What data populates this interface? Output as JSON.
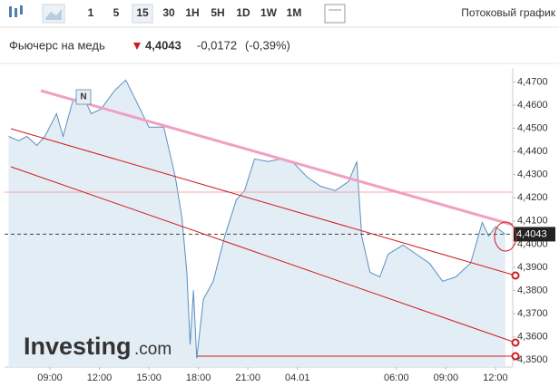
{
  "toolbar": {
    "intervals": [
      "1",
      "5",
      "15",
      "30",
      "1H",
      "5H",
      "1D",
      "1W",
      "1M"
    ],
    "active_interval": "15",
    "streaming": "Потоковый график"
  },
  "chart_data": {
    "type": "area",
    "title": "Фьючерс на медь",
    "last_value": 4.4043,
    "last_label": "4,4043",
    "change": -0.0172,
    "change_label": "-0,0172",
    "change_percent": -0.39,
    "change_percent_label": "(-0,39%)",
    "marker": "N",
    "watermark": "Investing",
    "watermark_suffix": ".com",
    "color": "#5b8fc0",
    "fill": "#e3edf5",
    "x": [
      6.5,
      7.1,
      7.6,
      8.2,
      8.7,
      9.4,
      9.8,
      10.4,
      11,
      11.5,
      12.1,
      12.9,
      13.6,
      14.2,
      15,
      15.9,
      16.6,
      17,
      17.3,
      17.5,
      17.7,
      17.9,
      18.3,
      18.9,
      19.6,
      20.3,
      20.8,
      21.4,
      22.2,
      23,
      23.8,
      24.6,
      25.4,
      26.3,
      27.1,
      27.6,
      27.9,
      28.4,
      29,
      29.5,
      30.4,
      31.2,
      32,
      32.8,
      33.6,
      34.5,
      35.2,
      35.6,
      36,
      36.6
    ],
    "values": [
      4.4465,
      4.4446,
      4.4465,
      4.4426,
      4.4465,
      4.4563,
      4.4465,
      4.4622,
      4.4641,
      4.4563,
      4.4583,
      4.4661,
      4.4708,
      4.4622,
      4.4505,
      4.4505,
      4.429,
      4.4114,
      4.3879,
      4.3567,
      4.3801,
      4.3508,
      4.3762,
      4.384,
      4.4035,
      4.4192,
      4.4231,
      4.4368,
      4.4356,
      4.4368,
      4.4348,
      4.4289,
      4.425,
      4.4231,
      4.427,
      4.4356,
      4.4035,
      4.3879,
      4.3859,
      4.3957,
      4.3996,
      4.3957,
      4.3918,
      4.384,
      4.3859,
      4.3918,
      4.4094,
      4.4035,
      4.4075,
      4.4043
    ],
    "xlim": [
      6.25,
      37.05
    ],
    "xticks": [
      {
        "value": 9,
        "label": "09:00"
      },
      {
        "value": 12,
        "label": "12:00"
      },
      {
        "value": 15,
        "label": "15:00"
      },
      {
        "value": 18,
        "label": "18:00"
      },
      {
        "value": 21,
        "label": "21:00"
      },
      {
        "value": 24,
        "label": "04.01"
      },
      {
        "value": 30,
        "label": "06:00"
      },
      {
        "value": 33,
        "label": "09:00"
      },
      {
        "value": 36,
        "label": "12:00"
      }
    ],
    "ylim": [
      4.347,
      4.476
    ],
    "yticks": [
      {
        "value": 4.35,
        "label": "4,3500"
      },
      {
        "value": 4.36,
        "label": "4,3600"
      },
      {
        "value": 4.37,
        "label": "4,3700"
      },
      {
        "value": 4.38,
        "label": "4,3800"
      },
      {
        "value": 4.39,
        "label": "4,3900"
      },
      {
        "value": 4.4,
        "label": "4,4000"
      },
      {
        "value": 4.41,
        "label": "4,4100"
      },
      {
        "value": 4.42,
        "label": "4,4200"
      },
      {
        "value": 4.43,
        "label": "4,4300"
      },
      {
        "value": 4.44,
        "label": "4,4400"
      },
      {
        "value": 4.45,
        "label": "4,4500"
      },
      {
        "value": 4.46,
        "label": "4,4600"
      },
      {
        "value": 4.47,
        "label": "4,4700"
      }
    ]
  }
}
